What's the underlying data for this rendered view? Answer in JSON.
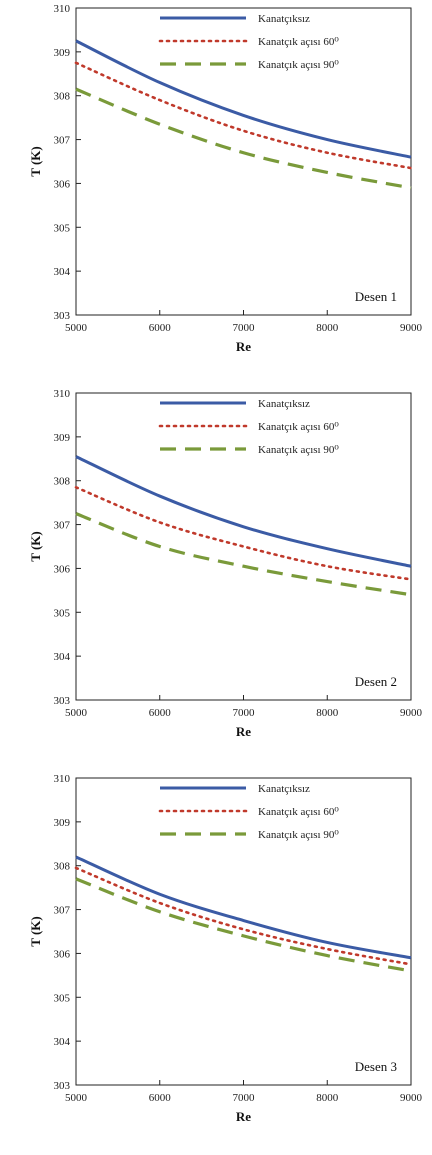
{
  "chart_data": [
    {
      "type": "line",
      "annotation": "Desen 1",
      "xlabel": "Re",
      "ylabel": "T (K)",
      "xlim": [
        5000,
        9000
      ],
      "ylim": [
        303,
        310
      ],
      "xticks": [
        5000,
        6000,
        7000,
        8000,
        9000
      ],
      "yticks": [
        303,
        304,
        305,
        306,
        307,
        308,
        309,
        310
      ],
      "legend_position": "top-right",
      "x": [
        5000,
        6000,
        7000,
        8000,
        9000
      ],
      "series": [
        {
          "name": "Kanatçıksız",
          "values": [
            309.25,
            308.3,
            307.55,
            307.0,
            306.6
          ],
          "color": "#3b5ba5",
          "style": "solid"
        },
        {
          "name": "Kanatçık açısı 60⁰",
          "values": [
            308.75,
            307.9,
            307.2,
            306.7,
            306.35
          ],
          "color": "#c0392b",
          "style": "dotted"
        },
        {
          "name": "Kanatçık açısı 90⁰",
          "values": [
            308.15,
            307.35,
            306.7,
            306.25,
            305.9
          ],
          "color": "#7a9a3a",
          "style": "dashed"
        }
      ]
    },
    {
      "type": "line",
      "annotation": "Desen 2",
      "xlabel": "Re",
      "ylabel": "T (K)",
      "xlim": [
        5000,
        9000
      ],
      "ylim": [
        303,
        310
      ],
      "xticks": [
        5000,
        6000,
        7000,
        8000,
        9000
      ],
      "yticks": [
        303,
        304,
        305,
        306,
        307,
        308,
        309,
        310
      ],
      "legend_position": "top-right",
      "x": [
        5000,
        6000,
        7000,
        8000,
        9000
      ],
      "series": [
        {
          "name": "Kanatçıksız",
          "values": [
            308.55,
            307.65,
            306.95,
            306.45,
            306.05
          ],
          "color": "#3b5ba5",
          "style": "solid"
        },
        {
          "name": "Kanatçık açısı 60⁰",
          "values": [
            307.85,
            307.05,
            306.5,
            306.05,
            305.75
          ],
          "color": "#c0392b",
          "style": "dotted"
        },
        {
          "name": "Kanatçık açısı 90⁰",
          "values": [
            307.25,
            306.5,
            306.05,
            305.7,
            305.4
          ],
          "color": "#7a9a3a",
          "style": "dashed"
        }
      ]
    },
    {
      "type": "line",
      "annotation": "Desen 3",
      "xlabel": "Re",
      "ylabel": "T (K)",
      "xlim": [
        5000,
        9000
      ],
      "ylim": [
        303,
        310
      ],
      "xticks": [
        5000,
        6000,
        7000,
        8000,
        9000
      ],
      "yticks": [
        303,
        304,
        305,
        306,
        307,
        308,
        309,
        310
      ],
      "legend_position": "top-right",
      "x": [
        5000,
        6000,
        7000,
        8000,
        9000
      ],
      "series": [
        {
          "name": "Kanatçıksız",
          "values": [
            308.2,
            307.35,
            306.75,
            306.25,
            305.9
          ],
          "color": "#3b5ba5",
          "style": "solid"
        },
        {
          "name": "Kanatçık açısı 60⁰",
          "values": [
            307.95,
            307.15,
            306.55,
            306.1,
            305.75
          ],
          "color": "#c0392b",
          "style": "dotted"
        },
        {
          "name": "Kanatçık açısı 90⁰",
          "values": [
            307.7,
            306.95,
            306.4,
            305.95,
            305.6
          ],
          "color": "#7a9a3a",
          "style": "dashed"
        }
      ]
    }
  ]
}
